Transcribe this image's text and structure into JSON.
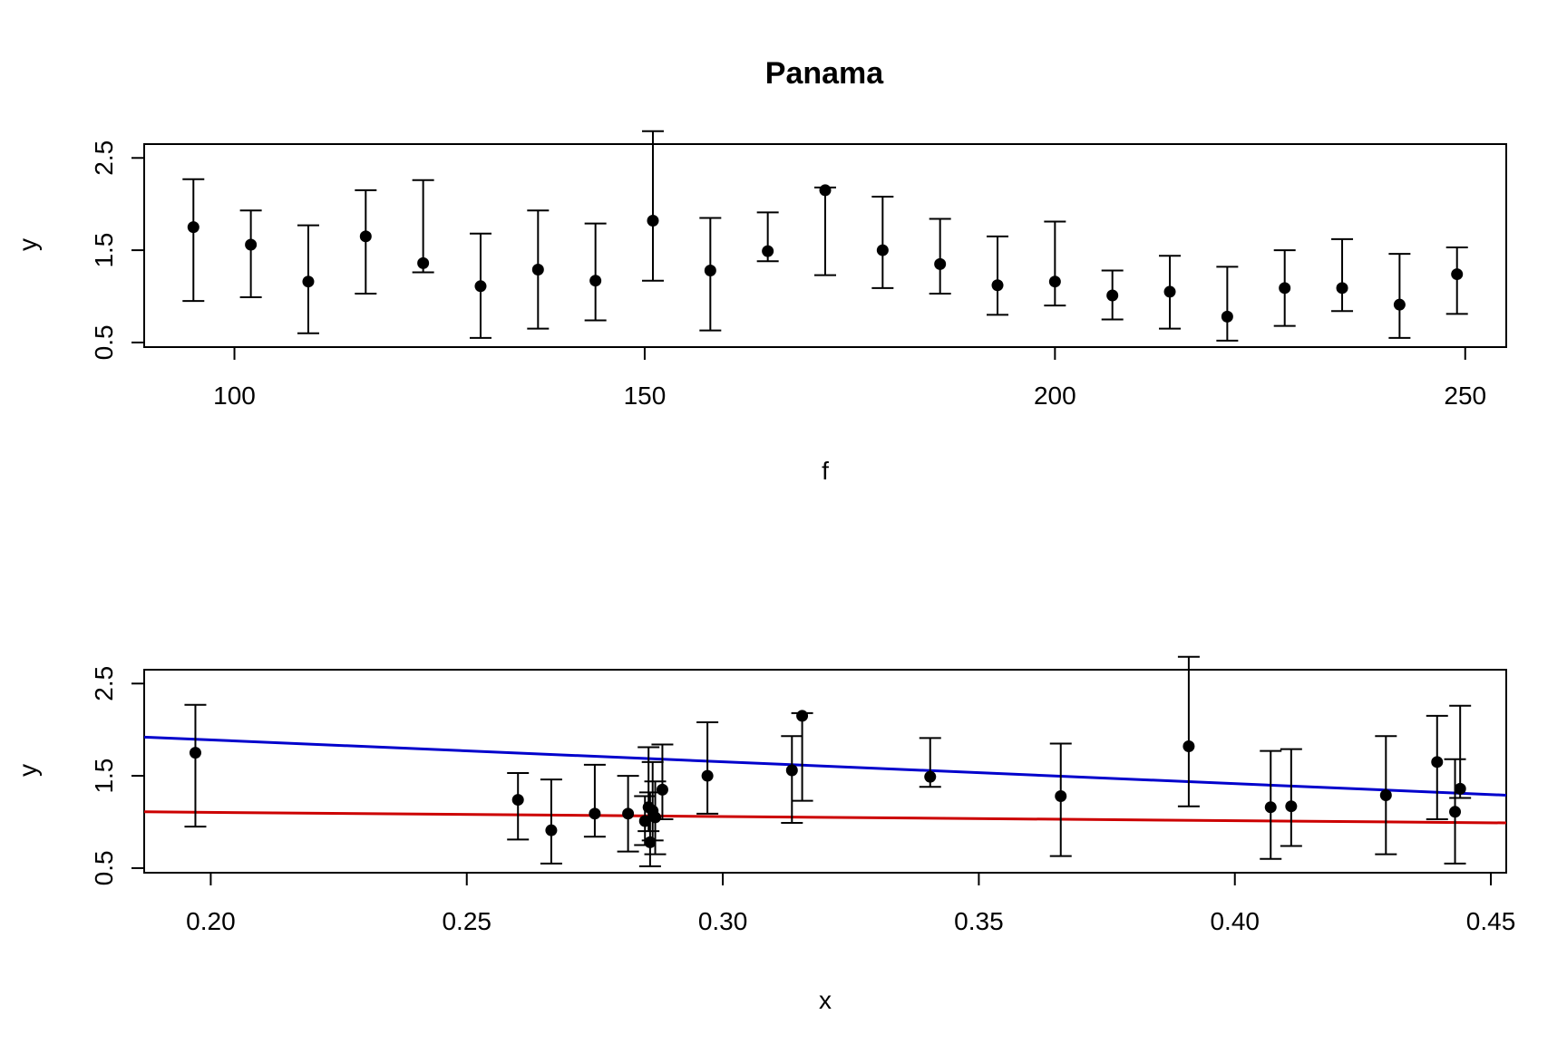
{
  "title": "Panama",
  "chart_data": [
    {
      "type": "scatter",
      "xlabel": "f",
      "ylabel": "y",
      "xlim": [
        89,
        255
      ],
      "ylim": [
        0.45,
        2.65
      ],
      "x_ticks": [
        "100",
        "150",
        "200",
        "250"
      ],
      "y_ticks": [
        "0.5",
        "1.5",
        "2.5"
      ],
      "points": [
        {
          "x": 95,
          "y": 1.75,
          "lo": 0.95,
          "hi": 2.27
        },
        {
          "x": 102,
          "y": 1.56,
          "lo": 0.99,
          "hi": 1.93
        },
        {
          "x": 109,
          "y": 1.16,
          "lo": 0.6,
          "hi": 1.77
        },
        {
          "x": 116,
          "y": 1.65,
          "lo": 1.03,
          "hi": 2.15
        },
        {
          "x": 123,
          "y": 1.36,
          "lo": 1.26,
          "hi": 2.26
        },
        {
          "x": 130,
          "y": 1.11,
          "lo": 0.55,
          "hi": 1.68
        },
        {
          "x": 137,
          "y": 1.29,
          "lo": 0.65,
          "hi": 1.93
        },
        {
          "x": 144,
          "y": 1.17,
          "lo": 0.74,
          "hi": 1.79
        },
        {
          "x": 151,
          "y": 1.82,
          "lo": 1.17,
          "hi": 2.79
        },
        {
          "x": 158,
          "y": 1.28,
          "lo": 0.63,
          "hi": 1.85
        },
        {
          "x": 165,
          "y": 1.49,
          "lo": 1.38,
          "hi": 1.91
        },
        {
          "x": 172,
          "y": 2.15,
          "lo": 1.23,
          "hi": 2.18
        },
        {
          "x": 179,
          "y": 1.5,
          "lo": 1.09,
          "hi": 2.08
        },
        {
          "x": 186,
          "y": 1.35,
          "lo": 1.03,
          "hi": 1.84
        },
        {
          "x": 193,
          "y": 1.12,
          "lo": 0.8,
          "hi": 1.65
        },
        {
          "x": 200,
          "y": 1.16,
          "lo": 0.9,
          "hi": 1.81
        },
        {
          "x": 207,
          "y": 1.01,
          "lo": 0.75,
          "hi": 1.28
        },
        {
          "x": 214,
          "y": 1.05,
          "lo": 0.65,
          "hi": 1.44
        },
        {
          "x": 221,
          "y": 0.78,
          "lo": 0.52,
          "hi": 1.32
        },
        {
          "x": 228,
          "y": 1.09,
          "lo": 0.68,
          "hi": 1.5
        },
        {
          "x": 235,
          "y": 1.09,
          "lo": 0.84,
          "hi": 1.62
        },
        {
          "x": 242,
          "y": 0.91,
          "lo": 0.55,
          "hi": 1.46
        },
        {
          "x": 249,
          "y": 1.24,
          "lo": 0.81,
          "hi": 1.53
        }
      ]
    },
    {
      "type": "scatter",
      "xlabel": "x",
      "ylabel": "y",
      "xlim": [
        0.187,
        0.453
      ],
      "ylim": [
        0.45,
        2.65
      ],
      "x_ticks": [
        "0.20",
        "0.25",
        "0.30",
        "0.35",
        "0.40",
        "0.45"
      ],
      "y_ticks": [
        "0.5",
        "1.5",
        "2.5"
      ],
      "points": [
        {
          "x": 0.197,
          "y": 1.75,
          "lo": 0.95,
          "hi": 2.27
        },
        {
          "x": 0.26,
          "y": 1.24,
          "lo": 0.81,
          "hi": 1.53
        },
        {
          "x": 0.2665,
          "y": 0.91,
          "lo": 0.55,
          "hi": 1.46
        },
        {
          "x": 0.275,
          "y": 1.09,
          "lo": 0.84,
          "hi": 1.62
        },
        {
          "x": 0.2815,
          "y": 1.09,
          "lo": 0.68,
          "hi": 1.5
        },
        {
          "x": 0.2848,
          "y": 1.01,
          "lo": 0.75,
          "hi": 1.28
        },
        {
          "x": 0.2855,
          "y": 1.16,
          "lo": 0.9,
          "hi": 1.81
        },
        {
          "x": 0.2858,
          "y": 0.78,
          "lo": 0.52,
          "hi": 1.32
        },
        {
          "x": 0.2863,
          "y": 1.12,
          "lo": 0.8,
          "hi": 1.65
        },
        {
          "x": 0.2868,
          "y": 1.05,
          "lo": 0.65,
          "hi": 1.44
        },
        {
          "x": 0.2882,
          "y": 1.35,
          "lo": 1.03,
          "hi": 1.84
        },
        {
          "x": 0.297,
          "y": 1.5,
          "lo": 1.09,
          "hi": 2.08
        },
        {
          "x": 0.3135,
          "y": 1.56,
          "lo": 0.99,
          "hi": 1.93
        },
        {
          "x": 0.3155,
          "y": 2.15,
          "lo": 1.23,
          "hi": 2.18
        },
        {
          "x": 0.3405,
          "y": 1.49,
          "lo": 1.38,
          "hi": 1.91
        },
        {
          "x": 0.366,
          "y": 1.28,
          "lo": 0.63,
          "hi": 1.85
        },
        {
          "x": 0.391,
          "y": 1.82,
          "lo": 1.17,
          "hi": 2.79
        },
        {
          "x": 0.407,
          "y": 1.16,
          "lo": 0.6,
          "hi": 1.77
        },
        {
          "x": 0.411,
          "y": 1.17,
          "lo": 0.74,
          "hi": 1.79
        },
        {
          "x": 0.4295,
          "y": 1.29,
          "lo": 0.65,
          "hi": 1.93
        },
        {
          "x": 0.4395,
          "y": 1.65,
          "lo": 1.03,
          "hi": 2.15
        },
        {
          "x": 0.443,
          "y": 1.11,
          "lo": 0.55,
          "hi": 1.68
        },
        {
          "x": 0.444,
          "y": 1.36,
          "lo": 1.26,
          "hi": 2.26
        }
      ],
      "lines": [
        {
          "color": "#0000cc",
          "x": [
            0.187,
            0.453
          ],
          "y": [
            1.92,
            1.29
          ]
        },
        {
          "color": "#cc0000",
          "x": [
            0.187,
            0.453
          ],
          "y": [
            1.11,
            0.99
          ]
        }
      ]
    }
  ]
}
